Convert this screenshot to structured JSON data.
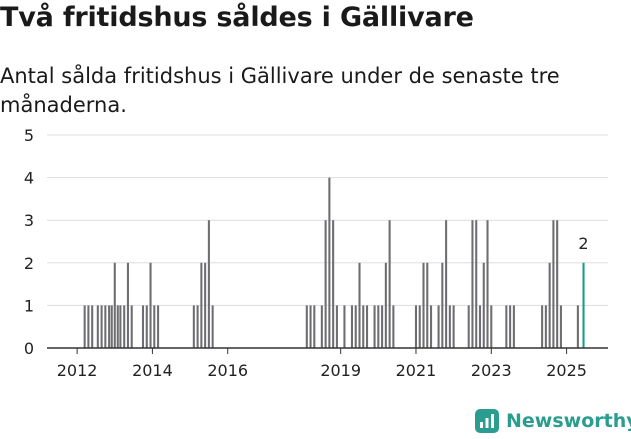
{
  "header": {
    "title": "Två fritidshus såldes i Gällivare",
    "subtitle": "Antal sålda fritidshus i Gällivare under de senaste tre månaderna."
  },
  "brand": {
    "name": "Newsworthy",
    "icon": "newsworthy-logo-icon",
    "color": "#2a9d8f"
  },
  "colors": {
    "bar": "#6e6e72",
    "highlight": "#1a9a8c",
    "grid": "#dddddd",
    "baseline": "#333333"
  },
  "chart_data": {
    "type": "bar",
    "title": "Två fritidshus såldes i Gällivare",
    "subtitle": "Antal sålda fritidshus i Gällivare under de senaste tre månaderna.",
    "xlabel": "",
    "ylabel": "",
    "ylim": [
      0,
      5
    ],
    "xlim": [
      2011.2,
      2026.1
    ],
    "yticks": [
      0,
      1,
      2,
      3,
      4,
      5
    ],
    "xticks": [
      2012,
      2014,
      2016,
      2019,
      2021,
      2023,
      2025
    ],
    "grid": true,
    "legend": "none",
    "bar_width_years": 0.055,
    "series": [
      {
        "x": [
          2012.2,
          2012.3,
          2012.4,
          2012.55,
          2012.65,
          2012.75,
          2012.85,
          2012.92,
          2013.0,
          2013.08,
          2013.15,
          2013.25,
          2013.35,
          2013.45,
          2013.75,
          2013.85,
          2013.95,
          2014.05,
          2014.15,
          2015.1,
          2015.2,
          2015.3,
          2015.4,
          2015.5,
          2015.6,
          2018.1,
          2018.2,
          2018.3,
          2018.5,
          2018.6,
          2018.7,
          2018.8,
          2018.9,
          2019.1,
          2019.3,
          2019.4,
          2019.5,
          2019.6,
          2019.7,
          2019.9,
          2020.0,
          2020.1,
          2020.2,
          2020.3,
          2020.4,
          2021.0,
          2021.1,
          2021.2,
          2021.3,
          2021.4,
          2021.6,
          2021.7,
          2021.8,
          2021.9,
          2022.0,
          2022.4,
          2022.5,
          2022.6,
          2022.7,
          2022.8,
          2022.9,
          2023.0,
          2023.4,
          2023.5,
          2023.6,
          2024.35,
          2024.45,
          2024.55,
          2024.65,
          2024.75,
          2024.85,
          2025.3
        ],
        "values": [
          1,
          1,
          1,
          1,
          1,
          1,
          1,
          1,
          2,
          1,
          1,
          1,
          2,
          1,
          1,
          1,
          2,
          1,
          1,
          1,
          1,
          2,
          2,
          3,
          1,
          1,
          1,
          1,
          1,
          3,
          4,
          3,
          1,
          1,
          1,
          1,
          2,
          1,
          1,
          1,
          1,
          1,
          2,
          3,
          1,
          1,
          1,
          2,
          2,
          1,
          1,
          2,
          3,
          1,
          1,
          1,
          3,
          3,
          1,
          2,
          3,
          1,
          1,
          1,
          1,
          1,
          1,
          2,
          3,
          3,
          1,
          1
        ]
      },
      {
        "name": "",
        "x": [
          2025.45
        ],
        "values": [
          2
        ],
        "label": "2",
        "highlight": true
      }
    ]
  }
}
